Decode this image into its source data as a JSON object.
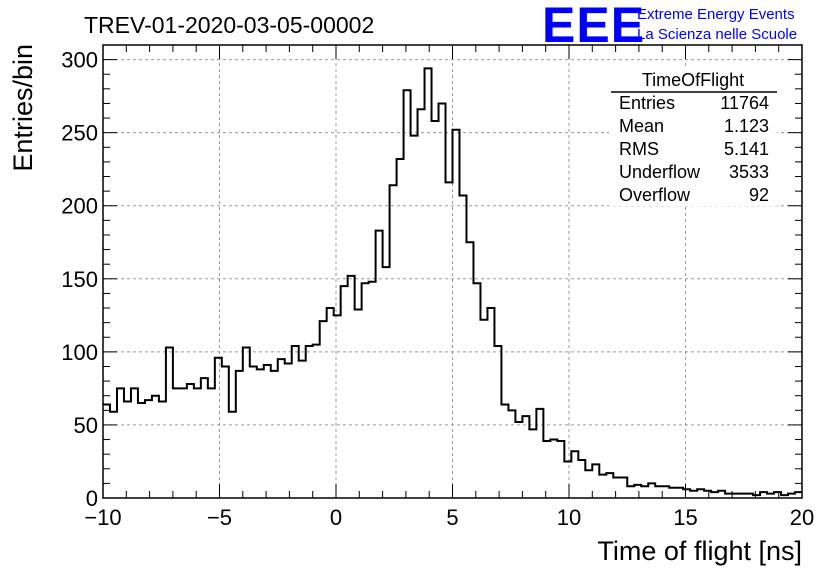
{
  "header": {
    "run_title": "TREV-01-2020-03-05-00002",
    "logo_text": "EEE",
    "brand_line1": "Extreme Energy Events",
    "brand_line2": "La Scienza nelle Scuole"
  },
  "stats_box": {
    "title": "TimeOfFlight",
    "rows": [
      {
        "label": "Entries",
        "value": "11764"
      },
      {
        "label": "Mean",
        "value": "1.123"
      },
      {
        "label": "RMS",
        "value": "5.141"
      },
      {
        "label": "Underflow",
        "value": "3533"
      },
      {
        "label": "Overflow",
        "value": "92"
      }
    ]
  },
  "colors": {
    "logo": "#0000ff",
    "histogram_line": "#000000",
    "grid": "#9a9a9a"
  },
  "chart_data": {
    "type": "histogram",
    "title": "TREV-01-2020-03-05-00002",
    "xlabel": "Time of flight [ns]",
    "ylabel": "Entries/bin",
    "xlim": [
      -10,
      20
    ],
    "ylim": [
      0,
      310
    ],
    "grid": true,
    "x_ticks": [
      -10,
      -5,
      0,
      5,
      10,
      15,
      20
    ],
    "x_tick_labels": [
      "−10",
      "−5",
      "0",
      "5",
      "10",
      "15",
      "20"
    ],
    "y_ticks": [
      0,
      50,
      100,
      150,
      200,
      250,
      300
    ],
    "y_tick_labels": [
      "0",
      "50",
      "100",
      "150",
      "200",
      "250",
      "300"
    ],
    "bin_width": 0.3,
    "bin_edges_start": -10,
    "values": [
      64,
      59,
      75,
      66,
      75,
      65,
      67,
      70,
      66,
      103,
      75,
      75,
      78,
      75,
      82,
      75,
      96,
      90,
      59,
      87,
      103,
      90,
      88,
      91,
      87,
      95,
      92,
      104,
      94,
      104,
      105,
      121,
      130,
      125,
      145,
      152,
      129,
      147,
      148,
      183,
      158,
      214,
      232,
      279,
      248,
      266,
      294,
      258,
      270,
      216,
      252,
      207,
      175,
      147,
      122,
      130,
      104,
      64,
      60,
      52,
      56,
      47,
      61,
      39,
      40,
      39,
      25,
      32,
      26,
      19,
      23,
      16,
      17,
      14,
      14,
      8,
      9,
      8,
      10,
      8,
      8,
      7,
      7,
      6,
      5,
      6,
      5,
      4,
      5,
      3,
      3,
      3,
      3,
      2,
      4,
      3,
      4,
      2,
      3,
      4
    ]
  }
}
